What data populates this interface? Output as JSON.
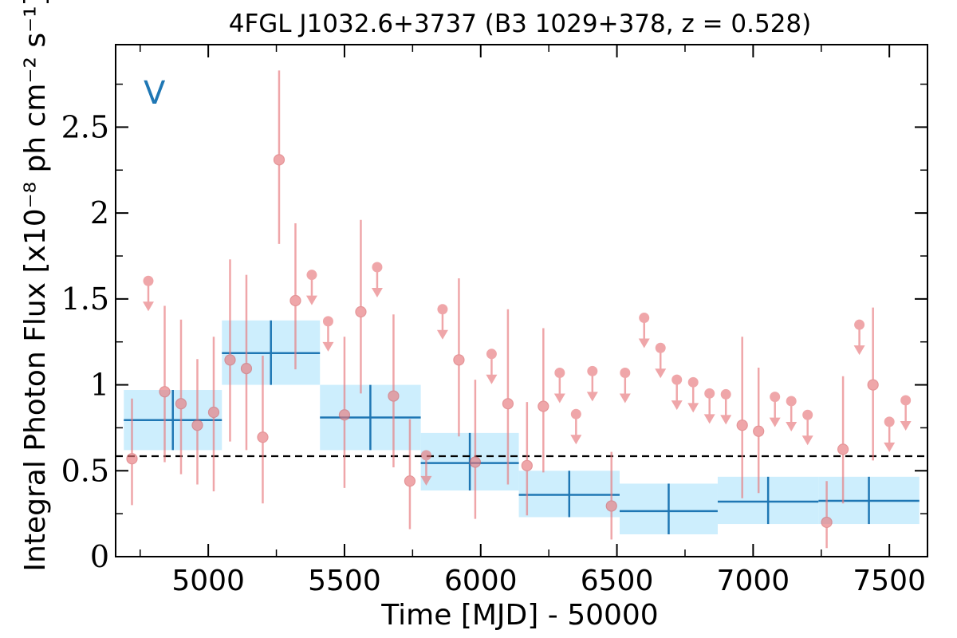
{
  "chart_data": {
    "type": "scatter",
    "title": "4FGL J1032.6+3737 (B3 1029+378, z = 0.528)",
    "panel_label": "V",
    "xlabel": "Time [MJD] - 50000",
    "ylabel": "Integral Photon Flux [x10⁻⁸ ph cm⁻² s⁻¹]",
    "xlim": [
      4660,
      7640
    ],
    "ylim": [
      0,
      2.98
    ],
    "xticks": [
      5000,
      5500,
      6000,
      6500,
      7000,
      7500
    ],
    "yticks": [
      0,
      0.5,
      1,
      1.5,
      2,
      2.5
    ],
    "ytick_labels": [
      "0",
      "0.5",
      "1",
      "1.5",
      "2",
      "2.5"
    ],
    "mean_flux": 0.585,
    "colors": {
      "points": "#e8787c",
      "bins": "#1f77b4",
      "bin_fill": "#cdeefd",
      "mean_line": "#000000"
    },
    "series": [
      {
        "name": "",
        "kind": "bins",
        "points": [
          {
            "x0": 4690,
            "x1": 5050,
            "y": 0.795,
            "ylo": 0.62,
            "yhi": 0.97
          },
          {
            "x0": 5050,
            "x1": 5410,
            "y": 1.185,
            "ylo": 1.0,
            "yhi": 1.375
          },
          {
            "x0": 5410,
            "x1": 5780,
            "y": 0.81,
            "ylo": 0.62,
            "yhi": 1.0
          },
          {
            "x0": 5780,
            "x1": 6140,
            "y": 0.545,
            "ylo": 0.385,
            "yhi": 0.72
          },
          {
            "x0": 6140,
            "x1": 6510,
            "y": 0.36,
            "ylo": 0.23,
            "yhi": 0.5
          },
          {
            "x0": 6510,
            "x1": 6870,
            "y": 0.265,
            "ylo": 0.13,
            "yhi": 0.425
          },
          {
            "x0": 6870,
            "x1": 7240,
            "y": 0.32,
            "ylo": 0.19,
            "yhi": 0.465
          },
          {
            "x0": 7240,
            "x1": 7610,
            "y": 0.325,
            "ylo": 0.19,
            "yhi": 0.465
          }
        ]
      },
      {
        "name": "",
        "kind": "detections",
        "points": [
          {
            "x": 4720,
            "y": 0.57,
            "ylo": 0.3,
            "yhi": 0.92
          },
          {
            "x": 4840,
            "y": 0.96,
            "ylo": 0.55,
            "yhi": 1.46
          },
          {
            "x": 4900,
            "y": 0.89,
            "ylo": 0.48,
            "yhi": 1.38
          },
          {
            "x": 4960,
            "y": 0.765,
            "ylo": 0.42,
            "yhi": 1.15
          },
          {
            "x": 5020,
            "y": 0.84,
            "ylo": 0.38,
            "yhi": 1.28
          },
          {
            "x": 5080,
            "y": 1.145,
            "ylo": 0.67,
            "yhi": 1.73
          },
          {
            "x": 5140,
            "y": 1.095,
            "ylo": 0.62,
            "yhi": 1.64
          },
          {
            "x": 5200,
            "y": 0.695,
            "ylo": 0.31,
            "yhi": 1.17
          },
          {
            "x": 5260,
            "y": 2.31,
            "ylo": 1.82,
            "yhi": 2.83
          },
          {
            "x": 5320,
            "y": 1.49,
            "ylo": 1.09,
            "yhi": 1.94
          },
          {
            "x": 5500,
            "y": 0.825,
            "ylo": 0.4,
            "yhi": 1.28
          },
          {
            "x": 5560,
            "y": 1.425,
            "ylo": 0.95,
            "yhi": 1.96
          },
          {
            "x": 5680,
            "y": 0.935,
            "ylo": 0.52,
            "yhi": 1.41
          },
          {
            "x": 5740,
            "y": 0.44,
            "ylo": 0.16,
            "yhi": 0.8
          },
          {
            "x": 5920,
            "y": 1.145,
            "ylo": 0.7,
            "yhi": 1.62
          },
          {
            "x": 5980,
            "y": 0.55,
            "ylo": 0.22,
            "yhi": 1.03
          },
          {
            "x": 6100,
            "y": 0.89,
            "ylo": 0.42,
            "yhi": 1.44
          },
          {
            "x": 6170,
            "y": 0.53,
            "ylo": 0.24,
            "yhi": 0.9
          },
          {
            "x": 6230,
            "y": 0.875,
            "ylo": 0.49,
            "yhi": 1.33
          },
          {
            "x": 6480,
            "y": 0.295,
            "ylo": 0.1,
            "yhi": 0.61
          },
          {
            "x": 6960,
            "y": 0.765,
            "ylo": 0.34,
            "yhi": 1.28
          },
          {
            "x": 7020,
            "y": 0.73,
            "ylo": 0.37,
            "yhi": 1.1
          },
          {
            "x": 7270,
            "y": 0.2,
            "ylo": 0.05,
            "yhi": 0.44
          },
          {
            "x": 7330,
            "y": 0.625,
            "ylo": 0.31,
            "yhi": 1.05
          },
          {
            "x": 7440,
            "y": 1.0,
            "ylo": 0.56,
            "yhi": 1.45
          }
        ]
      },
      {
        "name": "",
        "kind": "upper_limits",
        "points": [
          {
            "x": 4780,
            "y": 1.605
          },
          {
            "x": 5380,
            "y": 1.64
          },
          {
            "x": 5440,
            "y": 1.37
          },
          {
            "x": 5620,
            "y": 1.685
          },
          {
            "x": 5800,
            "y": 0.59
          },
          {
            "x": 5860,
            "y": 1.44
          },
          {
            "x": 6040,
            "y": 1.18
          },
          {
            "x": 6290,
            "y": 1.07
          },
          {
            "x": 6350,
            "y": 0.83
          },
          {
            "x": 6410,
            "y": 1.08
          },
          {
            "x": 6530,
            "y": 1.07
          },
          {
            "x": 6600,
            "y": 1.39
          },
          {
            "x": 6660,
            "y": 1.215
          },
          {
            "x": 6720,
            "y": 1.03
          },
          {
            "x": 6780,
            "y": 1.015
          },
          {
            "x": 6840,
            "y": 0.95
          },
          {
            "x": 6900,
            "y": 0.945
          },
          {
            "x": 7080,
            "y": 0.93
          },
          {
            "x": 7140,
            "y": 0.905
          },
          {
            "x": 7200,
            "y": 0.825
          },
          {
            "x": 7390,
            "y": 1.35
          },
          {
            "x": 7500,
            "y": 0.785
          },
          {
            "x": 7560,
            "y": 0.91
          }
        ]
      }
    ]
  }
}
